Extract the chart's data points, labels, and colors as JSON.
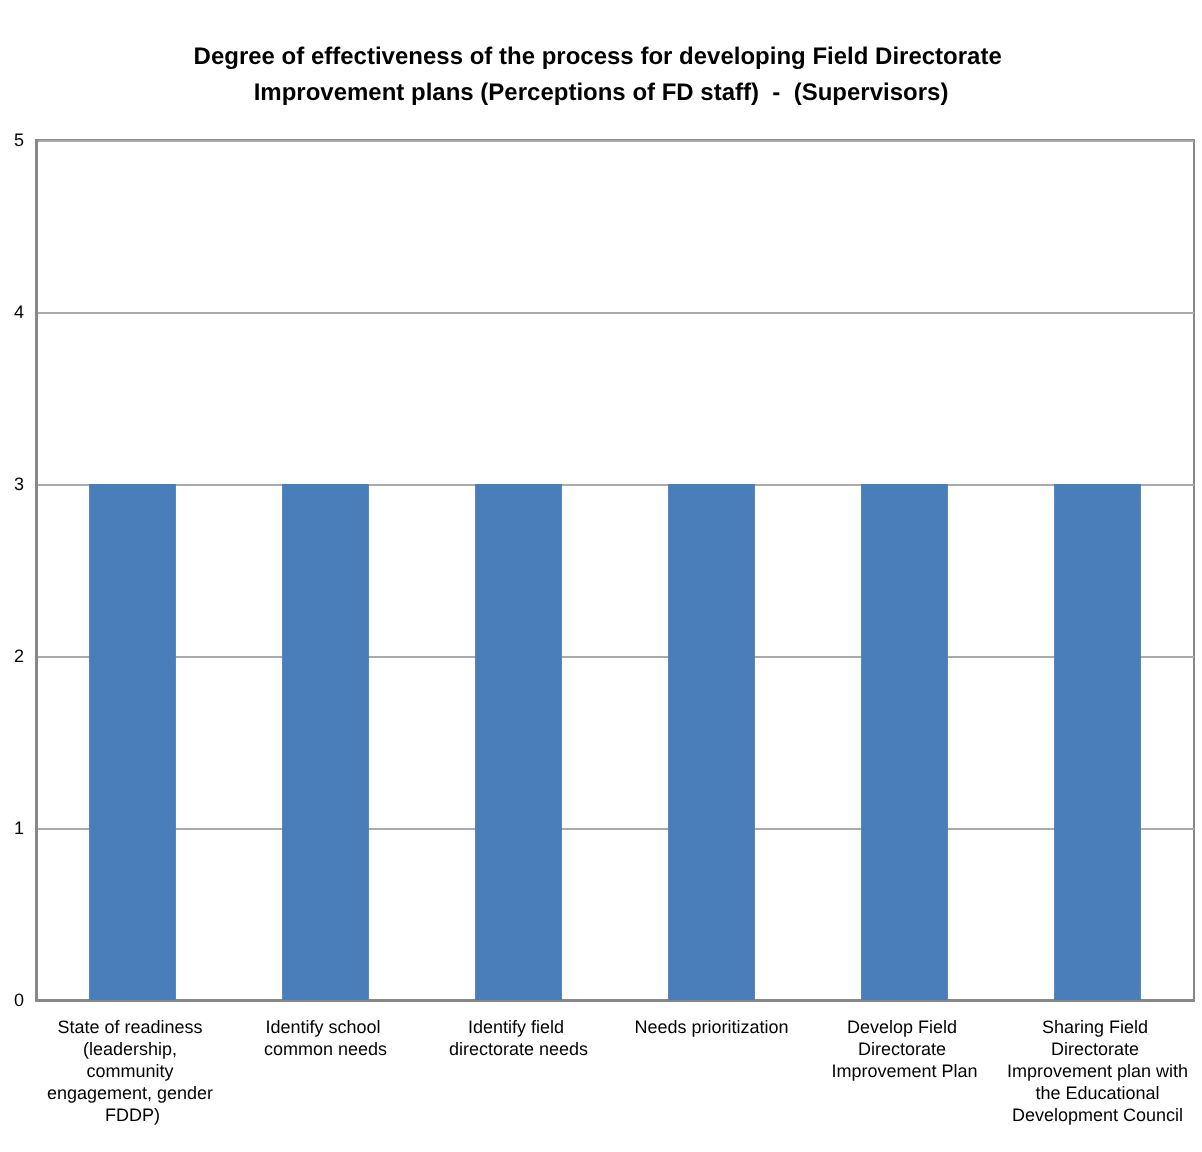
{
  "chart_data": {
    "type": "bar",
    "title": "Degree of effectiveness of the process for developing Field Directorate Improvement plans (Perceptions of FD staff)  -  (Supervisors)",
    "categories": [
      "State of readiness (leadership, community engagement, gender FDDP)",
      "Identify school common needs",
      "Identify field directorate needs",
      "Needs prioritization",
      "Develop Field Directorate Improvement Plan",
      "Sharing Field Directorate Improvement plan with the Educational Development Council"
    ],
    "values": [
      3,
      3,
      3,
      3,
      3,
      3
    ],
    "color": "#4a7ebb",
    "ylim": [
      0,
      5
    ],
    "yticks": [
      0,
      1,
      2,
      3,
      4,
      5
    ],
    "grid": "y"
  }
}
